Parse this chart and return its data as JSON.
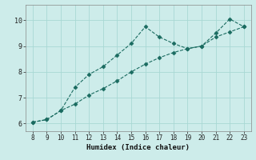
{
  "xlabel": "Humidex (Indice chaleur)",
  "xlim": [
    7.5,
    23.5
  ],
  "ylim": [
    5.7,
    10.6
  ],
  "xticks": [
    8,
    9,
    10,
    11,
    12,
    13,
    14,
    15,
    16,
    17,
    18,
    19,
    20,
    21,
    22,
    23
  ],
  "yticks": [
    6,
    7,
    8,
    9,
    10
  ],
  "background_color": "#cdecea",
  "grid_color": "#a8d8d4",
  "line_color": "#1a6b60",
  "series1_x": [
    8,
    9,
    10,
    11,
    12,
    13,
    14,
    15,
    16,
    17,
    18,
    19,
    20,
    21,
    22,
    23
  ],
  "series1_y": [
    6.05,
    6.15,
    6.5,
    7.4,
    7.9,
    8.2,
    8.65,
    9.1,
    9.75,
    9.35,
    9.1,
    8.9,
    9.0,
    9.5,
    10.05,
    9.75
  ],
  "series2_x": [
    8,
    9,
    10,
    11,
    12,
    13,
    14,
    15,
    16,
    17,
    18,
    19,
    20,
    21,
    22,
    23
  ],
  "series2_y": [
    6.05,
    6.15,
    6.5,
    6.75,
    7.1,
    7.35,
    7.65,
    8.0,
    8.3,
    8.55,
    8.75,
    8.9,
    9.0,
    9.35,
    9.55,
    9.75
  ]
}
